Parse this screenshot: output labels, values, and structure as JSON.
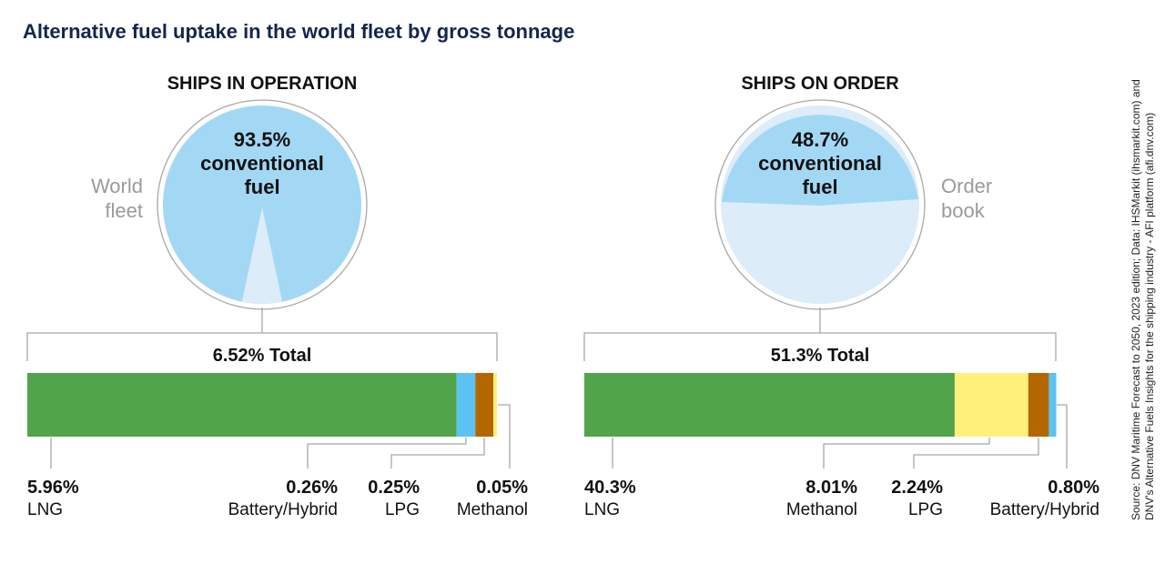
{
  "chart_data": [
    {
      "type": "pie",
      "subtitle": "SHIPS IN OPERATION",
      "side_label": [
        "World",
        "fleet"
      ],
      "main_value": "93.5%",
      "main_label": [
        "conventional",
        "fuel"
      ],
      "slices": [
        {
          "name": "conventional fuel",
          "value": 93.5
        },
        {
          "name": "alternative fuel",
          "value": 6.52
        }
      ],
      "total_label": "6.52%  Total",
      "bar_total": 6.52,
      "segments": [
        {
          "name": "LNG",
          "value": 5.96,
          "label": "5.96%",
          "color": "#52a44a"
        },
        {
          "name": "Battery/Hybrid",
          "value": 0.26,
          "label": "0.26%",
          "color": "#5bc2f2"
        },
        {
          "name": "LPG",
          "value": 0.25,
          "label": "0.25%",
          "color": "#b46600"
        },
        {
          "name": "Methanol",
          "value": 0.05,
          "label": "0.05%",
          "color": "#fff07a"
        }
      ]
    },
    {
      "type": "pie",
      "subtitle": "SHIPS ON ORDER",
      "side_label": [
        "Order",
        "book"
      ],
      "main_value": "48.7%",
      "main_label": [
        "conventional",
        "fuel"
      ],
      "slices": [
        {
          "name": "conventional fuel",
          "value": 48.7
        },
        {
          "name": "alternative fuel",
          "value": 51.3
        }
      ],
      "total_label": "51.3%  Total",
      "bar_total": 51.3,
      "segments": [
        {
          "name": "LNG",
          "value": 40.3,
          "label": "40.3%",
          "color": "#52a44a"
        },
        {
          "name": "Methanol",
          "value": 8.01,
          "label": "8.01%",
          "color": "#fff07a"
        },
        {
          "name": "LPG",
          "value": 2.24,
          "label": "2.24%",
          "color": "#b46600"
        },
        {
          "name": "Battery/Hybrid",
          "value": 0.8,
          "label": "0.80%",
          "color": "#5bc2f2"
        }
      ]
    }
  ],
  "title": "Alternative fuel uptake in the world fleet by gross tonnage",
  "source": [
    "Source: DNV Maritime Forecast to 2050, 2023 edition; Data: IHSMarkit (ihsmarkit.com) and",
    "DNV's Alternative Fuels Insights for the shipping industry - AFI platform (afi.dnv.com)"
  ],
  "colors": {
    "conventional": "#a3d8f5",
    "alternative": "#dceefb",
    "title": "#14254f"
  }
}
